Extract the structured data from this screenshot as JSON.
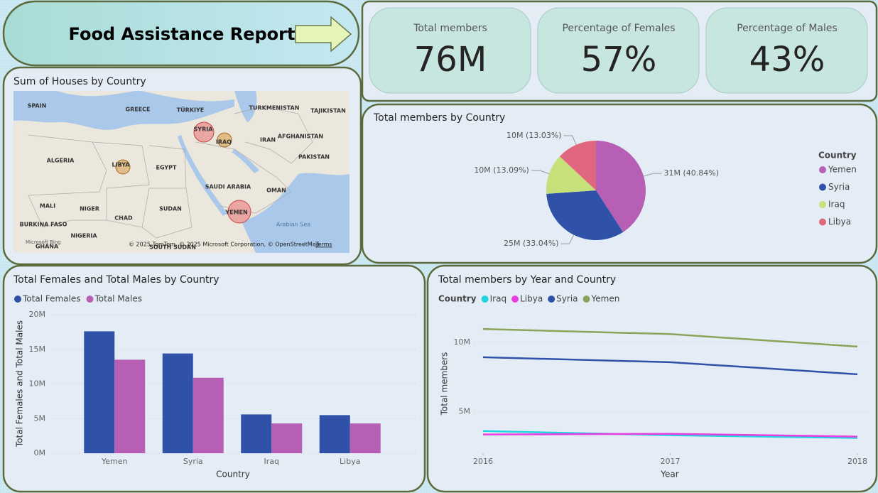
{
  "header": {
    "title": "Food Assistance Report"
  },
  "cards": [
    {
      "label": "Total members",
      "value": "76M"
    },
    {
      "label": "Percentage of Females",
      "value": "57%"
    },
    {
      "label": "Percentage of Males",
      "value": "43%"
    }
  ],
  "map": {
    "title": "Sum of Houses by Country",
    "labels": [
      "SPAIN",
      "GREECE",
      "TÜRKIYE",
      "TURKMENISTAN",
      "TAJIKISTAN",
      "SYRIA",
      "IRAQ",
      "IRAN",
      "AFGHANISTAN",
      "ALGERIA",
      "LIBYA",
      "EGYPT",
      "PAKISTAN",
      "SAUDI ARABIA",
      "OMAN",
      "MALI",
      "NIGER",
      "CHAD",
      "SUDAN",
      "YEMEN",
      "BURKINA FASO",
      "NIGERIA",
      "GHANA",
      "SOUTH SUDAN",
      "Arabian Sea"
    ],
    "logo": "Microsoft Bing",
    "attribution": "© 2025 TomTom, © 2025 Microsoft Corporation, © OpenStreetMap",
    "terms": "Terms"
  },
  "chart_data": [
    {
      "type": "pie",
      "title": "Total members by Country",
      "legend_title": "Country",
      "categories": [
        "Yemen",
        "Syria",
        "Iraq",
        "Libya"
      ],
      "values": [
        40.84,
        33.04,
        13.09,
        13.03
      ],
      "value_labels": [
        "31M (40.84%)",
        "25M (33.04%)",
        "10M (13.09%)",
        "10M (13.03%)"
      ],
      "colors": [
        "#b65fb5",
        "#2f52a8",
        "#c6e07a",
        "#e0677e"
      ],
      "legend": "right"
    },
    {
      "type": "bar",
      "title": "Total Females and Total Males by Country",
      "categories": [
        "Yemen",
        "Syria",
        "Iraq",
        "Libya"
      ],
      "series": [
        {
          "name": "Total Females",
          "color": "#2f52a8",
          "values": [
            17600000,
            14400000,
            5600000,
            5500000
          ]
        },
        {
          "name": "Total Males",
          "color": "#b65fb5",
          "values": [
            13500000,
            10900000,
            4300000,
            4300000
          ]
        }
      ],
      "ylim": [
        0,
        20000000
      ],
      "yticks": [
        {
          "value": 0,
          "label": "0M"
        },
        {
          "value": 5000000,
          "label": "5M"
        },
        {
          "value": 10000000,
          "label": "10M"
        },
        {
          "value": 15000000,
          "label": "15M"
        },
        {
          "value": 20000000,
          "label": "20M"
        }
      ],
      "xlabel": "Country",
      "ylabel": "Total Females and Total Males",
      "grid": true,
      "legend": "top-left"
    },
    {
      "type": "line",
      "title": "Total members by Year and Country",
      "legend_title": "Country",
      "x": [
        2016,
        2017,
        2018
      ],
      "xlim": [
        2016,
        2018
      ],
      "xticks": [
        2016,
        2017,
        2018
      ],
      "series": [
        {
          "name": "Iraq",
          "color": "#22d3e0",
          "values": [
            3600000,
            3300000,
            3100000
          ]
        },
        {
          "name": "Libya",
          "color": "#e83ee0",
          "values": [
            3350000,
            3400000,
            3200000
          ]
        },
        {
          "name": "Syria",
          "color": "#2f52a8",
          "values": [
            8930000,
            8570000,
            7700000
          ]
        },
        {
          "name": "Yemen",
          "color": "#8aa35a",
          "values": [
            10970000,
            10600000,
            9700000
          ]
        }
      ],
      "ylim": [
        2000000,
        12000000
      ],
      "yticks": [
        {
          "value": 5000000,
          "label": "5M"
        },
        {
          "value": 10000000,
          "label": "10M"
        }
      ],
      "xlabel": "Year",
      "ylabel": "Total members",
      "grid": true,
      "legend": "top-left"
    }
  ]
}
